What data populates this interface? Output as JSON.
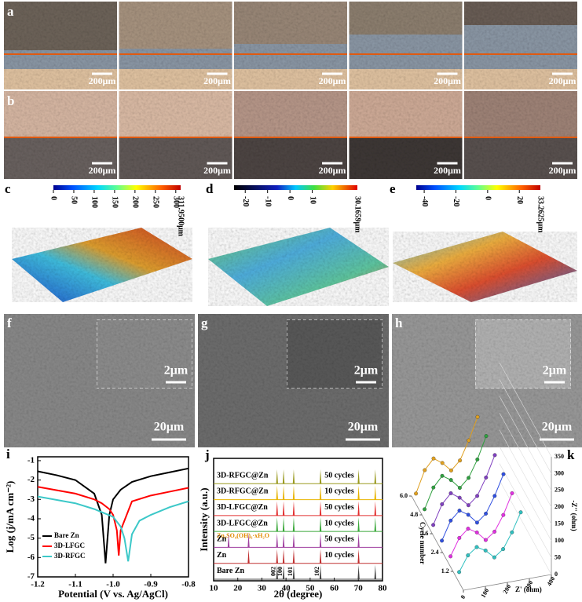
{
  "image_rows": [
    {
      "label": "a",
      "scale_bars": [
        "200μm",
        "200μm",
        "200μm",
        "200μm",
        "200μm"
      ]
    },
    {
      "label": "b",
      "scale_bars": [
        "200μm",
        "200μm",
        "200μm",
        "200μm",
        "200μm"
      ]
    }
  ],
  "profiles": [
    {
      "label": "c",
      "lim": [
        0,
        311.95
      ],
      "ticks": [
        0,
        50,
        100,
        150,
        200,
        250,
        300
      ],
      "max_label": "311.9500μm",
      "palette": "jet"
    },
    {
      "label": "d",
      "lim": [
        -25,
        30.17
      ],
      "ticks": [
        -20,
        -10,
        0,
        10
      ],
      "max_label": "30.1659μm",
      "palette": "dark"
    },
    {
      "label": "e",
      "lim": [
        -45,
        33.26
      ],
      "ticks": [
        -40,
        -20,
        0,
        20
      ],
      "max_label": "33.2625μm",
      "palette": "jet"
    }
  ],
  "sem": [
    {
      "label": "f",
      "scale_bar": "20μm",
      "inset_scale_bar": "2μm"
    },
    {
      "label": "g",
      "scale_bar": "20μm",
      "inset_scale_bar": "2μm"
    },
    {
      "label": "h",
      "scale_bar": "20μm",
      "inset_scale_bar": "2μm"
    }
  ],
  "chart_data": [
    {
      "type": "line",
      "label": "i",
      "xlabel": "Potential (V vs. Ag/AgCl)",
      "ylabel": "Log (j/mA cm⁻²)",
      "xlim": [
        -1.2,
        -0.8
      ],
      "xticks": [
        -1.2,
        -1.1,
        {
          "value": -1,
          "label": "-1.0"
        },
        -0.9,
        -0.8
      ],
      "ylim": [
        -7,
        -0.8
      ],
      "yticks": [
        -7,
        -6,
        -5,
        -4,
        -3,
        -2,
        -1
      ],
      "legend": "lower left",
      "series": [
        {
          "name": "Bare Zn",
          "color": "#000000",
          "x": [
            -1.2,
            -1.15,
            -1.1,
            -1.05,
            -1.03,
            -1.02,
            -1.01,
            -1,
            -0.98,
            -0.95,
            -0.9,
            -0.85,
            -0.8
          ],
          "values": [
            -1.55,
            -1.75,
            -2.0,
            -2.7,
            -3.8,
            -6.3,
            -3.8,
            -3.0,
            -2.5,
            -2.1,
            -1.8,
            -1.6,
            -1.4
          ]
        },
        {
          "name": "3D-LFGC",
          "color": "#ff0000",
          "x": [
            -1.2,
            -1.1,
            -1.05,
            -1.03,
            -1.01,
            -1,
            -0.99,
            -0.985,
            -0.98,
            -0.95,
            -0.9,
            -0.85,
            -0.8
          ],
          "values": [
            -2.35,
            -2.7,
            -3.0,
            -3.2,
            -3.5,
            -3.8,
            -4.6,
            -5.9,
            -4.6,
            -3.1,
            -2.8,
            -2.6,
            -2.4
          ]
        },
        {
          "name": "3D-RFGC",
          "color": "#3cc8c8",
          "x": [
            -1.2,
            -1.1,
            -1.05,
            -1,
            -0.98,
            -0.97,
            -0.96,
            -0.95,
            -0.93,
            -0.9,
            -0.85,
            -0.8
          ],
          "values": [
            -2.85,
            -3.2,
            -3.5,
            -3.9,
            -4.4,
            -5.0,
            -6.2,
            -4.8,
            -4.1,
            -3.8,
            -3.4,
            -3.1
          ]
        }
      ]
    },
    {
      "type": "xrd",
      "label": "j",
      "xlabel": "2θ (degree)",
      "ylabel": "Intensity (a.u.)",
      "xlim": [
        10,
        80
      ],
      "xticks": [
        10,
        20,
        30,
        40,
        50,
        60,
        70,
        80
      ],
      "series": [
        {
          "name": "3D-RFGC@Zn",
          "cycles": "50 cycles",
          "color": "#9a9a20",
          "peaks": [
            36.3,
            39,
            43.2,
            54.3,
            70.1,
            77
          ]
        },
        {
          "name": "3D-RFGC@Zn",
          "cycles": "10 cycles",
          "color": "#e8b400",
          "peaks": [
            36.3,
            39,
            43.2,
            54.3,
            70.1,
            77
          ]
        },
        {
          "name": "3D-LFGC@Zn",
          "cycles": "50 cycles",
          "color": "#e23030",
          "peaks": [
            36.3,
            39,
            43.2,
            54.3,
            70.1,
            77
          ]
        },
        {
          "name": "3D-LFGC@Zn",
          "cycles": "10 cycles",
          "color": "#3aa83a",
          "peaks": [
            36.3,
            39,
            43.2,
            54.3,
            70.1,
            77
          ]
        },
        {
          "name": "Zn",
          "cycles": "50 cycles",
          "color": "#a040a0",
          "peaks": [
            16.2,
            24.5,
            36.3,
            39,
            43.2,
            54.3,
            70.1
          ]
        },
        {
          "name": "Zn",
          "cycles": "10 cycles",
          "color": "#c03030",
          "peaks": [
            24.5,
            36.3,
            39,
            43.2,
            54.3,
            70.1
          ]
        },
        {
          "name": "Bare Zn",
          "color": "#444444",
          "peaks": [
            36.3,
            39,
            43.2,
            54.3,
            70.1,
            77
          ]
        }
      ],
      "annotation": "Zn₄SO₄(OH)₆·xH₂O",
      "peak_labels": [
        {
          "x": 36.3,
          "label": "002"
        },
        {
          "x": 39,
          "label": "100"
        },
        {
          "x": 43.2,
          "label": "101"
        },
        {
          "x": 54.3,
          "label": "102"
        }
      ]
    },
    {
      "type": "nyquist3d",
      "label": "k",
      "xlabel": "Z' (ohm)",
      "ylabel": "-Z'' (ohm)",
      "zlabel": "Cycle number",
      "xlim": [
        0,
        400
      ],
      "xticks": [
        0,
        100,
        200,
        300,
        400
      ],
      "ylim": [
        0,
        350
      ],
      "yticks": [
        0,
        50,
        100,
        150,
        200,
        250,
        300,
        350
      ],
      "zlim": [
        0,
        6
      ],
      "zticks": [
        1.2,
        2.4,
        3.6,
        4.8,
        {
          "value": 6,
          "label": "6.0"
        }
      ],
      "series": [
        {
          "cycle": 1,
          "color": "#30c0c0",
          "x": [
            20,
            60,
            100,
            140,
            180,
            220,
            260,
            300
          ],
          "values": [
            5,
            50,
            70,
            55,
            30,
            50,
            95,
            150
          ]
        },
        {
          "cycle": 2,
          "color": "#e030e0",
          "x": [
            20,
            60,
            100,
            140,
            180,
            220,
            260,
            300
          ],
          "values": [
            5,
            55,
            78,
            62,
            35,
            55,
            100,
            160
          ]
        },
        {
          "cycle": 3,
          "color": "#3050e0",
          "x": [
            20,
            60,
            100,
            140,
            180,
            220,
            260,
            300
          ],
          "values": [
            5,
            60,
            85,
            68,
            40,
            62,
            110,
            170
          ]
        },
        {
          "cycle": 4,
          "color": "#8040c0",
          "x": [
            20,
            60,
            100,
            140,
            180,
            220,
            260,
            300
          ],
          "values": [
            5,
            62,
            90,
            72,
            45,
            68,
            118,
            180
          ]
        },
        {
          "cycle": 5,
          "color": "#30a040",
          "x": [
            20,
            60,
            100,
            140,
            180,
            220,
            260,
            300
          ],
          "values": [
            5,
            65,
            95,
            78,
            50,
            75,
            125,
            190
          ]
        },
        {
          "cycle": 6,
          "color": "#e0a020",
          "x": [
            20,
            60,
            100,
            140,
            180,
            220,
            260,
            300
          ],
          "values": [
            5,
            70,
            100,
            82,
            55,
            80,
            135,
            200
          ]
        }
      ]
    }
  ]
}
